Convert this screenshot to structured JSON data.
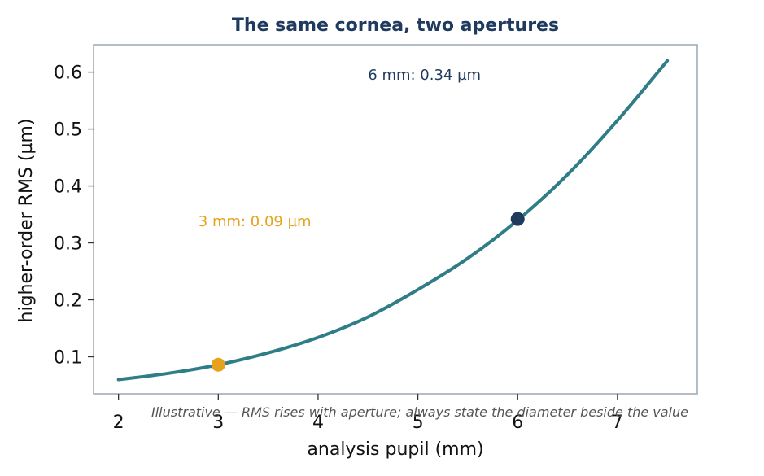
{
  "chart_data": {
    "type": "line",
    "title": "The same cornea, two apertures",
    "xlabel": "analysis pupil (mm)",
    "ylabel": "higher-order RMS (µm)",
    "xlim": [
      1.75,
      7.8
    ],
    "ylim": [
      0.035,
      0.648
    ],
    "x_ticks": [
      2,
      3,
      4,
      5,
      6,
      7
    ],
    "y_ticks": [
      0.1,
      0.2,
      0.3,
      0.4,
      0.5,
      0.6
    ],
    "grid": false,
    "series": [
      {
        "color": "#2e7d87",
        "x": [
          2.0,
          2.5,
          3.0,
          3.5,
          4.0,
          4.5,
          5.0,
          5.5,
          6.0,
          6.5,
          7.0,
          7.5
        ],
        "y": [
          0.06,
          0.071,
          0.086,
          0.107,
          0.134,
          0.17,
          0.218,
          0.273,
          0.34,
          0.42,
          0.515,
          0.62
        ]
      }
    ],
    "highlight_points": [
      {
        "x": 3,
        "y": 0.086,
        "color": "#e6a21c",
        "label": "3 mm: 0.09 µm"
      },
      {
        "x": 6,
        "y": 0.342,
        "color": "#1f3a5f",
        "label": "6 mm: 0.34 µm"
      }
    ],
    "annotations": [
      {
        "text": "3 mm: 0.09 µm",
        "x": 2.8,
        "y": 0.338,
        "color": "#e6a21c"
      },
      {
        "text": "6 mm: 0.34 µm",
        "x": 4.5,
        "y": 0.595,
        "color": "#1f3a5f"
      }
    ],
    "caption": "Illustrative — RMS rises with aperture; always state the diameter beside the value"
  }
}
